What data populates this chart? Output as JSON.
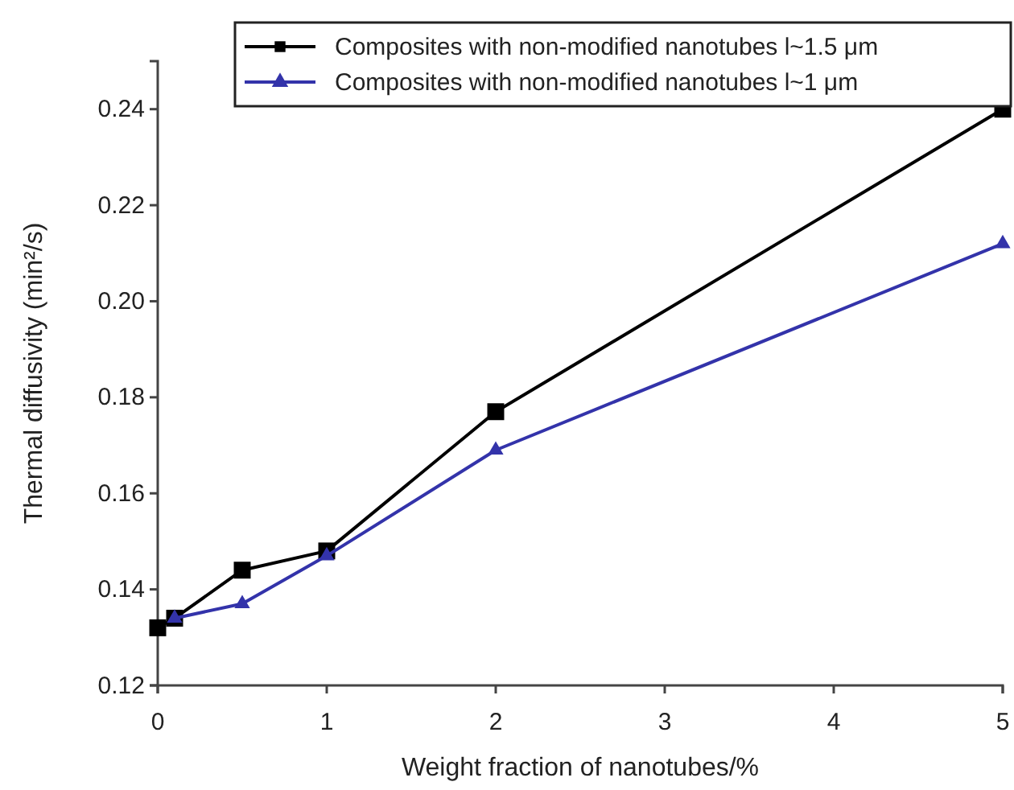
{
  "chart_data": {
    "type": "line",
    "xlabel": "Weight fraction of nanotubes/%",
    "ylabel": "Thermal diffusivity (min²/s)",
    "xlim": [
      0,
      5
    ],
    "xticks": [
      0,
      1,
      2,
      3,
      4,
      5
    ],
    "ylim": [
      0.12,
      0.25
    ],
    "yticks": [
      {
        "value": 0.12,
        "label": "0.12"
      },
      {
        "value": 0.14,
        "label": "0.14"
      },
      {
        "value": 0.16,
        "label": "0.16"
      },
      {
        "value": 0.18,
        "label": "0.18"
      },
      {
        "value": 0.2,
        "label": "0.20"
      },
      {
        "value": 0.22,
        "label": "0.22"
      },
      {
        "value": 0.24,
        "label": "0.24"
      }
    ],
    "legend": "top right",
    "grid": false,
    "series": [
      {
        "name": "Composites with non-modified nanotubes l~1.5 μm",
        "color": "#000000",
        "marker": "square",
        "x": [
          0,
          0.1,
          0.5,
          1,
          2,
          5
        ],
        "values": [
          0.132,
          0.134,
          0.144,
          0.148,
          0.177,
          0.24
        ]
      },
      {
        "name": "Composites with non-modified nanotubes l~1 μm",
        "color": "#3333aa",
        "marker": "triangle",
        "x": [
          0.1,
          0.5,
          1,
          2,
          5
        ],
        "values": [
          0.134,
          0.137,
          0.147,
          0.169,
          0.212
        ]
      }
    ]
  }
}
